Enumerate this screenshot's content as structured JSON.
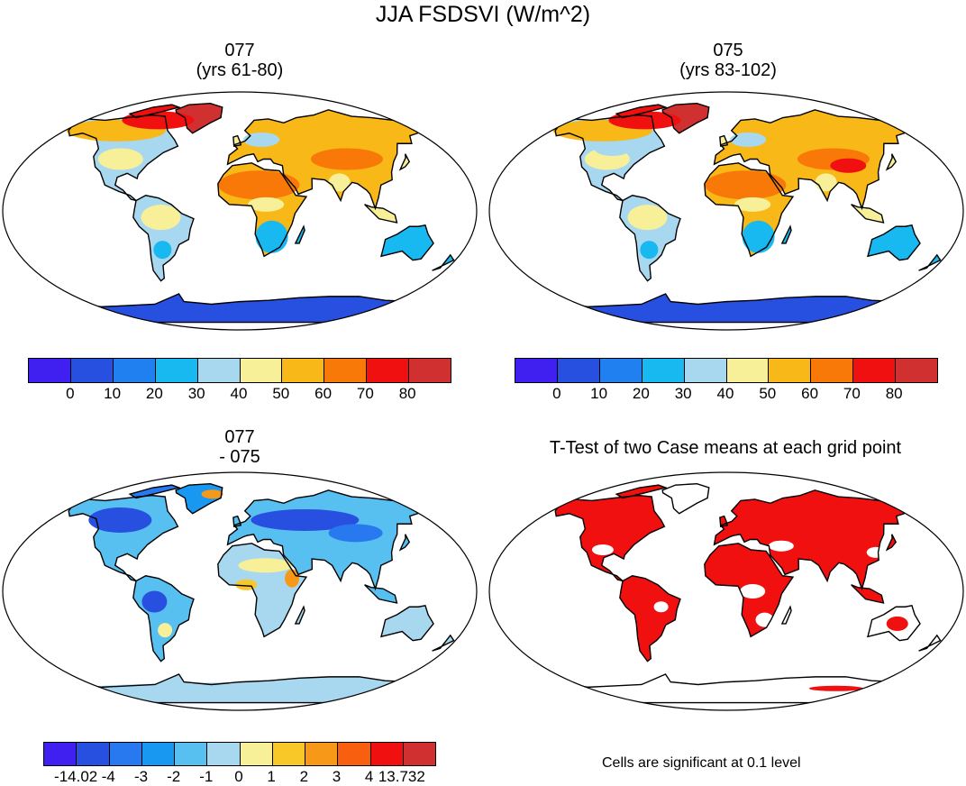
{
  "figure_title": "JJA FSDSVI (W/m^2)",
  "panels": [
    {
      "id": "p077",
      "title_line1": "077",
      "title_line2": "(yrs 61-80)"
    },
    {
      "id": "p075",
      "title_line1": "075",
      "title_line2": "(yrs 83-102)"
    },
    {
      "id": "pdiff",
      "title_line1": "077",
      "title_line2": "- 075"
    },
    {
      "id": "pttest",
      "title_line1": "T-Test of two Case means at each grid point",
      "title_line2": ""
    }
  ],
  "colorbar_abs": {
    "colors": [
      "#4020f0",
      "#2850e0",
      "#2080f0",
      "#18b8f0",
      "#a8d8f0",
      "#f8f098",
      "#f8b818",
      "#f87808",
      "#f01010",
      "#d03030"
    ],
    "labels": [
      "0",
      "10",
      "20",
      "30",
      "40",
      "50",
      "60",
      "70",
      "80"
    ]
  },
  "colorbar_diff": {
    "colors": [
      "#4020f0",
      "#2850e0",
      "#2878f0",
      "#1898f0",
      "#58c0f0",
      "#a8d8f0",
      "#f8f098",
      "#f8c828",
      "#f89818",
      "#f86010",
      "#f01010",
      "#d03030"
    ],
    "labels": [
      "-14.02",
      "-4",
      "-3",
      "-2",
      "-1",
      "0",
      "1",
      "2",
      "3",
      "4",
      "13.732"
    ]
  },
  "significance_note": "Cells are significant at 0.1 level",
  "chart_data": {
    "type": "heatmap",
    "title": "JJA FSDSVI (W/m^2)",
    "variable": "FSDSVI",
    "units": "W/m^2",
    "abs_levels": [
      0,
      10,
      20,
      30,
      40,
      50,
      60,
      70,
      80
    ],
    "diff_levels": [
      -14.02,
      -4,
      -3,
      -2,
      -1,
      0,
      1,
      2,
      3,
      4,
      13.732
    ],
    "significance_level": 0.1,
    "regions_abs_077": {
      "antarctica": 5,
      "greenland": 85,
      "north_america_high_lat": 65,
      "north_america_mid": 35,
      "south_america_north": 45,
      "south_america_south": 30,
      "africa_north": 65,
      "africa_south": 25,
      "europe": 55,
      "asia_north": 60,
      "asia_south": 60,
      "australia": 25
    },
    "regions_abs_075": {
      "antarctica": 5,
      "greenland": 85,
      "north_america_high_lat": 60,
      "north_america_mid": 40,
      "south_america_north": 50,
      "south_america_south": 30,
      "africa_north": 65,
      "africa_south": 25,
      "europe": 55,
      "asia_north": 62,
      "asia_south": 65,
      "australia": 25
    },
    "regions_diff": {
      "antarctica": -0.5,
      "greenland": -2,
      "north_america_high_lat": -3,
      "north_america_mid": -2.5,
      "south_america_north": -4,
      "south_america_south": 0.5,
      "africa_north": 1.5,
      "africa_south": -0.5,
      "europe": -2,
      "asia_north": -3.5,
      "asia_south": -1,
      "australia": -1
    }
  }
}
